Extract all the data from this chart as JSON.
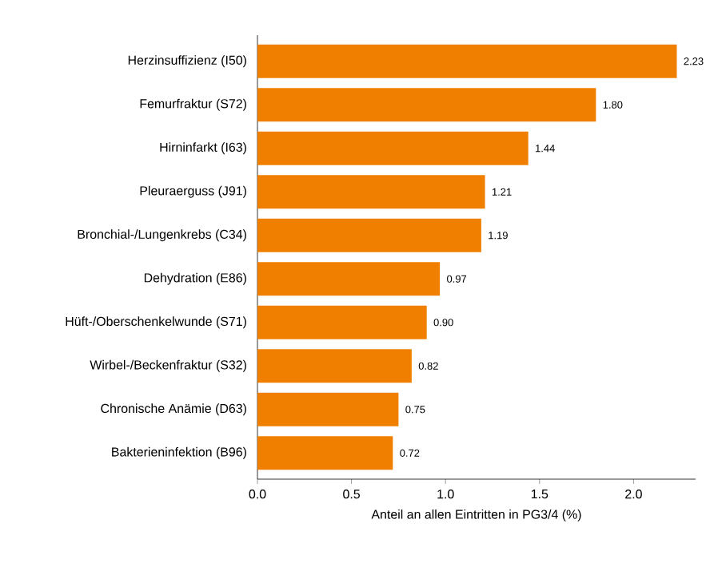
{
  "chart_data": {
    "type": "bar",
    "orientation": "horizontal",
    "xlabel": "Anteil an allen Eintritten in PG3/4 (%)",
    "categories": [
      "Herzinsuffizienz (I50)",
      "Femurfraktur (S72)",
      "Hirninfarkt (I63)",
      "Pleuraerguss (J91)",
      "Bronchial-/Lungenkrebs (C34)",
      "Dehydration (E86)",
      "Hüft-/Oberschenkelwunde (S71)",
      "Wirbel-/Beckenfraktur (S32)",
      "Chronische Anämie (D63)",
      "Bakterieninfektion (B96)"
    ],
    "values": [
      2.23,
      1.8,
      1.44,
      1.21,
      1.19,
      0.97,
      0.9,
      0.82,
      0.75,
      0.72
    ],
    "value_labels": [
      "2.23",
      "1.80",
      "1.44",
      "1.21",
      "1.19",
      "0.97",
      "0.90",
      "0.82",
      "0.75",
      "0.72"
    ],
    "color": "#f07f00",
    "xlim": [
      0,
      2.33
    ],
    "xticks": [
      {
        "value": 0,
        "label": "0.0"
      },
      {
        "value": 0.5,
        "label": "0.5"
      },
      {
        "value": 1.0,
        "label": "1.0"
      },
      {
        "value": 1.5,
        "label": "1.5"
      },
      {
        "value": 2.0,
        "label": "2.0"
      }
    ]
  }
}
